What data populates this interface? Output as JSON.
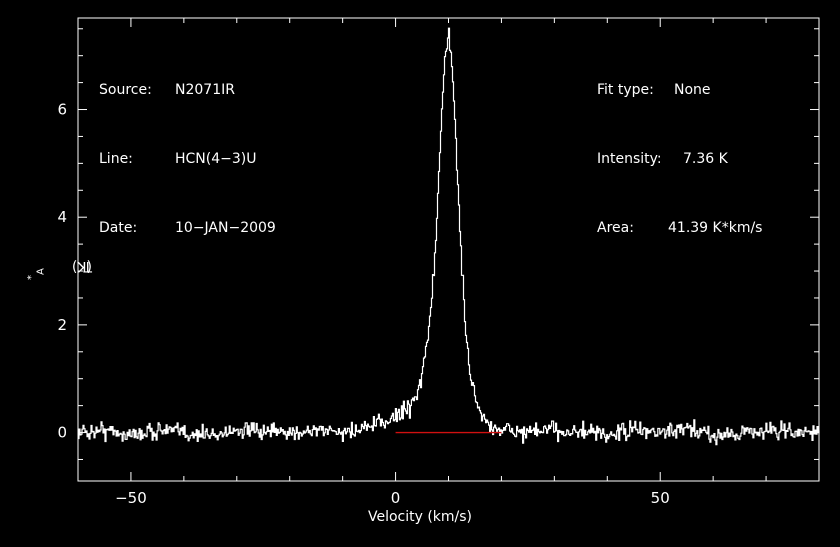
{
  "header_left": {
    "source_label": "Source:",
    "source": "N2071IR",
    "line_label": "Line:",
    "line": "HCN(4−3)U",
    "date_label": "Date:",
    "date": "10−JAN−2009"
  },
  "header_right": {
    "fit_label": "Fit type:",
    "fit": "None",
    "intensity_label": "Intensity:",
    "intensity": "7.36 K",
    "area_label": "Area:",
    "area": "41.39 K*km/s"
  },
  "chart_data": {
    "type": "line",
    "xlabel": "Velocity (km/s)",
    "ylabel_main": "T",
    "ylabel_sup": "*",
    "ylabel_sub": "A",
    "ylabel_unit": " (K)",
    "xlim": [
      -60,
      80
    ],
    "ylim": [
      -0.9,
      7.7
    ],
    "xticks": [
      -50,
      0,
      50
    ],
    "yticks": [
      0,
      2,
      4,
      6
    ],
    "xtick_labels": [
      "−50",
      "0",
      "50"
    ],
    "ytick_labels": [
      "0",
      "2",
      "4",
      "6"
    ],
    "grid": false,
    "baseline": {
      "y": 0,
      "x_start": 0,
      "x_end": 20,
      "color": "#d01010"
    },
    "series": [
      {
        "color": "#ffffff",
        "x": [
          -60,
          -55,
          -50,
          -45,
          -40,
          -35,
          -30,
          -25,
          -20,
          -15,
          -10,
          -5,
          -2,
          0,
          2,
          3,
          4,
          5,
          6,
          7,
          7.5,
          8,
          8.5,
          9,
          9.5,
          10,
          10.5,
          11,
          11.5,
          12,
          12.5,
          13,
          14,
          15,
          16,
          17,
          18,
          20,
          25,
          30,
          35,
          40,
          45,
          50,
          55,
          60,
          65,
          70,
          75,
          80
        ],
        "y": [
          0,
          0.05,
          -0.05,
          0.05,
          0,
          -0.05,
          0.05,
          0,
          0,
          0.05,
          0,
          0.1,
          0.2,
          0.3,
          0.45,
          0.55,
          0.75,
          1.1,
          1.8,
          2.8,
          3.5,
          4.5,
          5.6,
          6.6,
          7.2,
          7.36,
          7.0,
          6.1,
          5.0,
          3.9,
          3.0,
          2.1,
          1.1,
          0.65,
          0.35,
          0.2,
          0.1,
          0.05,
          0,
          0.05,
          0,
          -0.05,
          0.05,
          0,
          0.05,
          -0.05,
          0,
          0.05,
          0,
          0
        ]
      }
    ]
  }
}
